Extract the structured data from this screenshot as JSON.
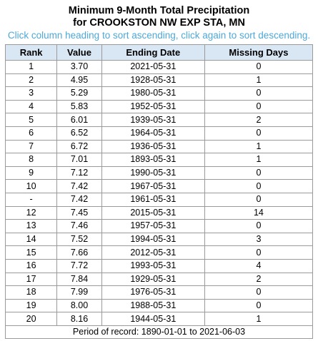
{
  "header": {
    "title": "Minimum 9-Month Total Precipitation",
    "subtitle": "for CROOKSTON NW EXP STA, MN",
    "hint": "Click column heading to sort ascending, click again to sort descending."
  },
  "table": {
    "columns": [
      "Rank",
      "Value",
      "Ending Date",
      "Missing Days"
    ],
    "rows": [
      [
        "1",
        "3.70",
        "2021-05-31",
        "0"
      ],
      [
        "2",
        "4.95",
        "1928-05-31",
        "1"
      ],
      [
        "3",
        "5.29",
        "1980-05-31",
        "0"
      ],
      [
        "4",
        "5.83",
        "1952-05-31",
        "0"
      ],
      [
        "5",
        "6.01",
        "1939-05-31",
        "2"
      ],
      [
        "6",
        "6.52",
        "1964-05-31",
        "0"
      ],
      [
        "7",
        "6.72",
        "1936-05-31",
        "1"
      ],
      [
        "8",
        "7.01",
        "1893-05-31",
        "1"
      ],
      [
        "9",
        "7.12",
        "1990-05-31",
        "0"
      ],
      [
        "10",
        "7.42",
        "1967-05-31",
        "0"
      ],
      [
        "-",
        "7.42",
        "1961-05-31",
        "0"
      ],
      [
        "12",
        "7.45",
        "2015-05-31",
        "14"
      ],
      [
        "13",
        "7.46",
        "1957-05-31",
        "0"
      ],
      [
        "14",
        "7.52",
        "1994-05-31",
        "3"
      ],
      [
        "15",
        "7.66",
        "2012-05-31",
        "0"
      ],
      [
        "16",
        "7.72",
        "1993-05-31",
        "4"
      ],
      [
        "17",
        "7.84",
        "1929-05-31",
        "2"
      ],
      [
        "18",
        "7.99",
        "1976-05-31",
        "0"
      ],
      [
        "19",
        "8.00",
        "1988-05-31",
        "0"
      ],
      [
        "20",
        "8.16",
        "1944-05-31",
        "1"
      ]
    ],
    "footer": "Period of record: 1890-01-01 to 2021-06-03"
  }
}
